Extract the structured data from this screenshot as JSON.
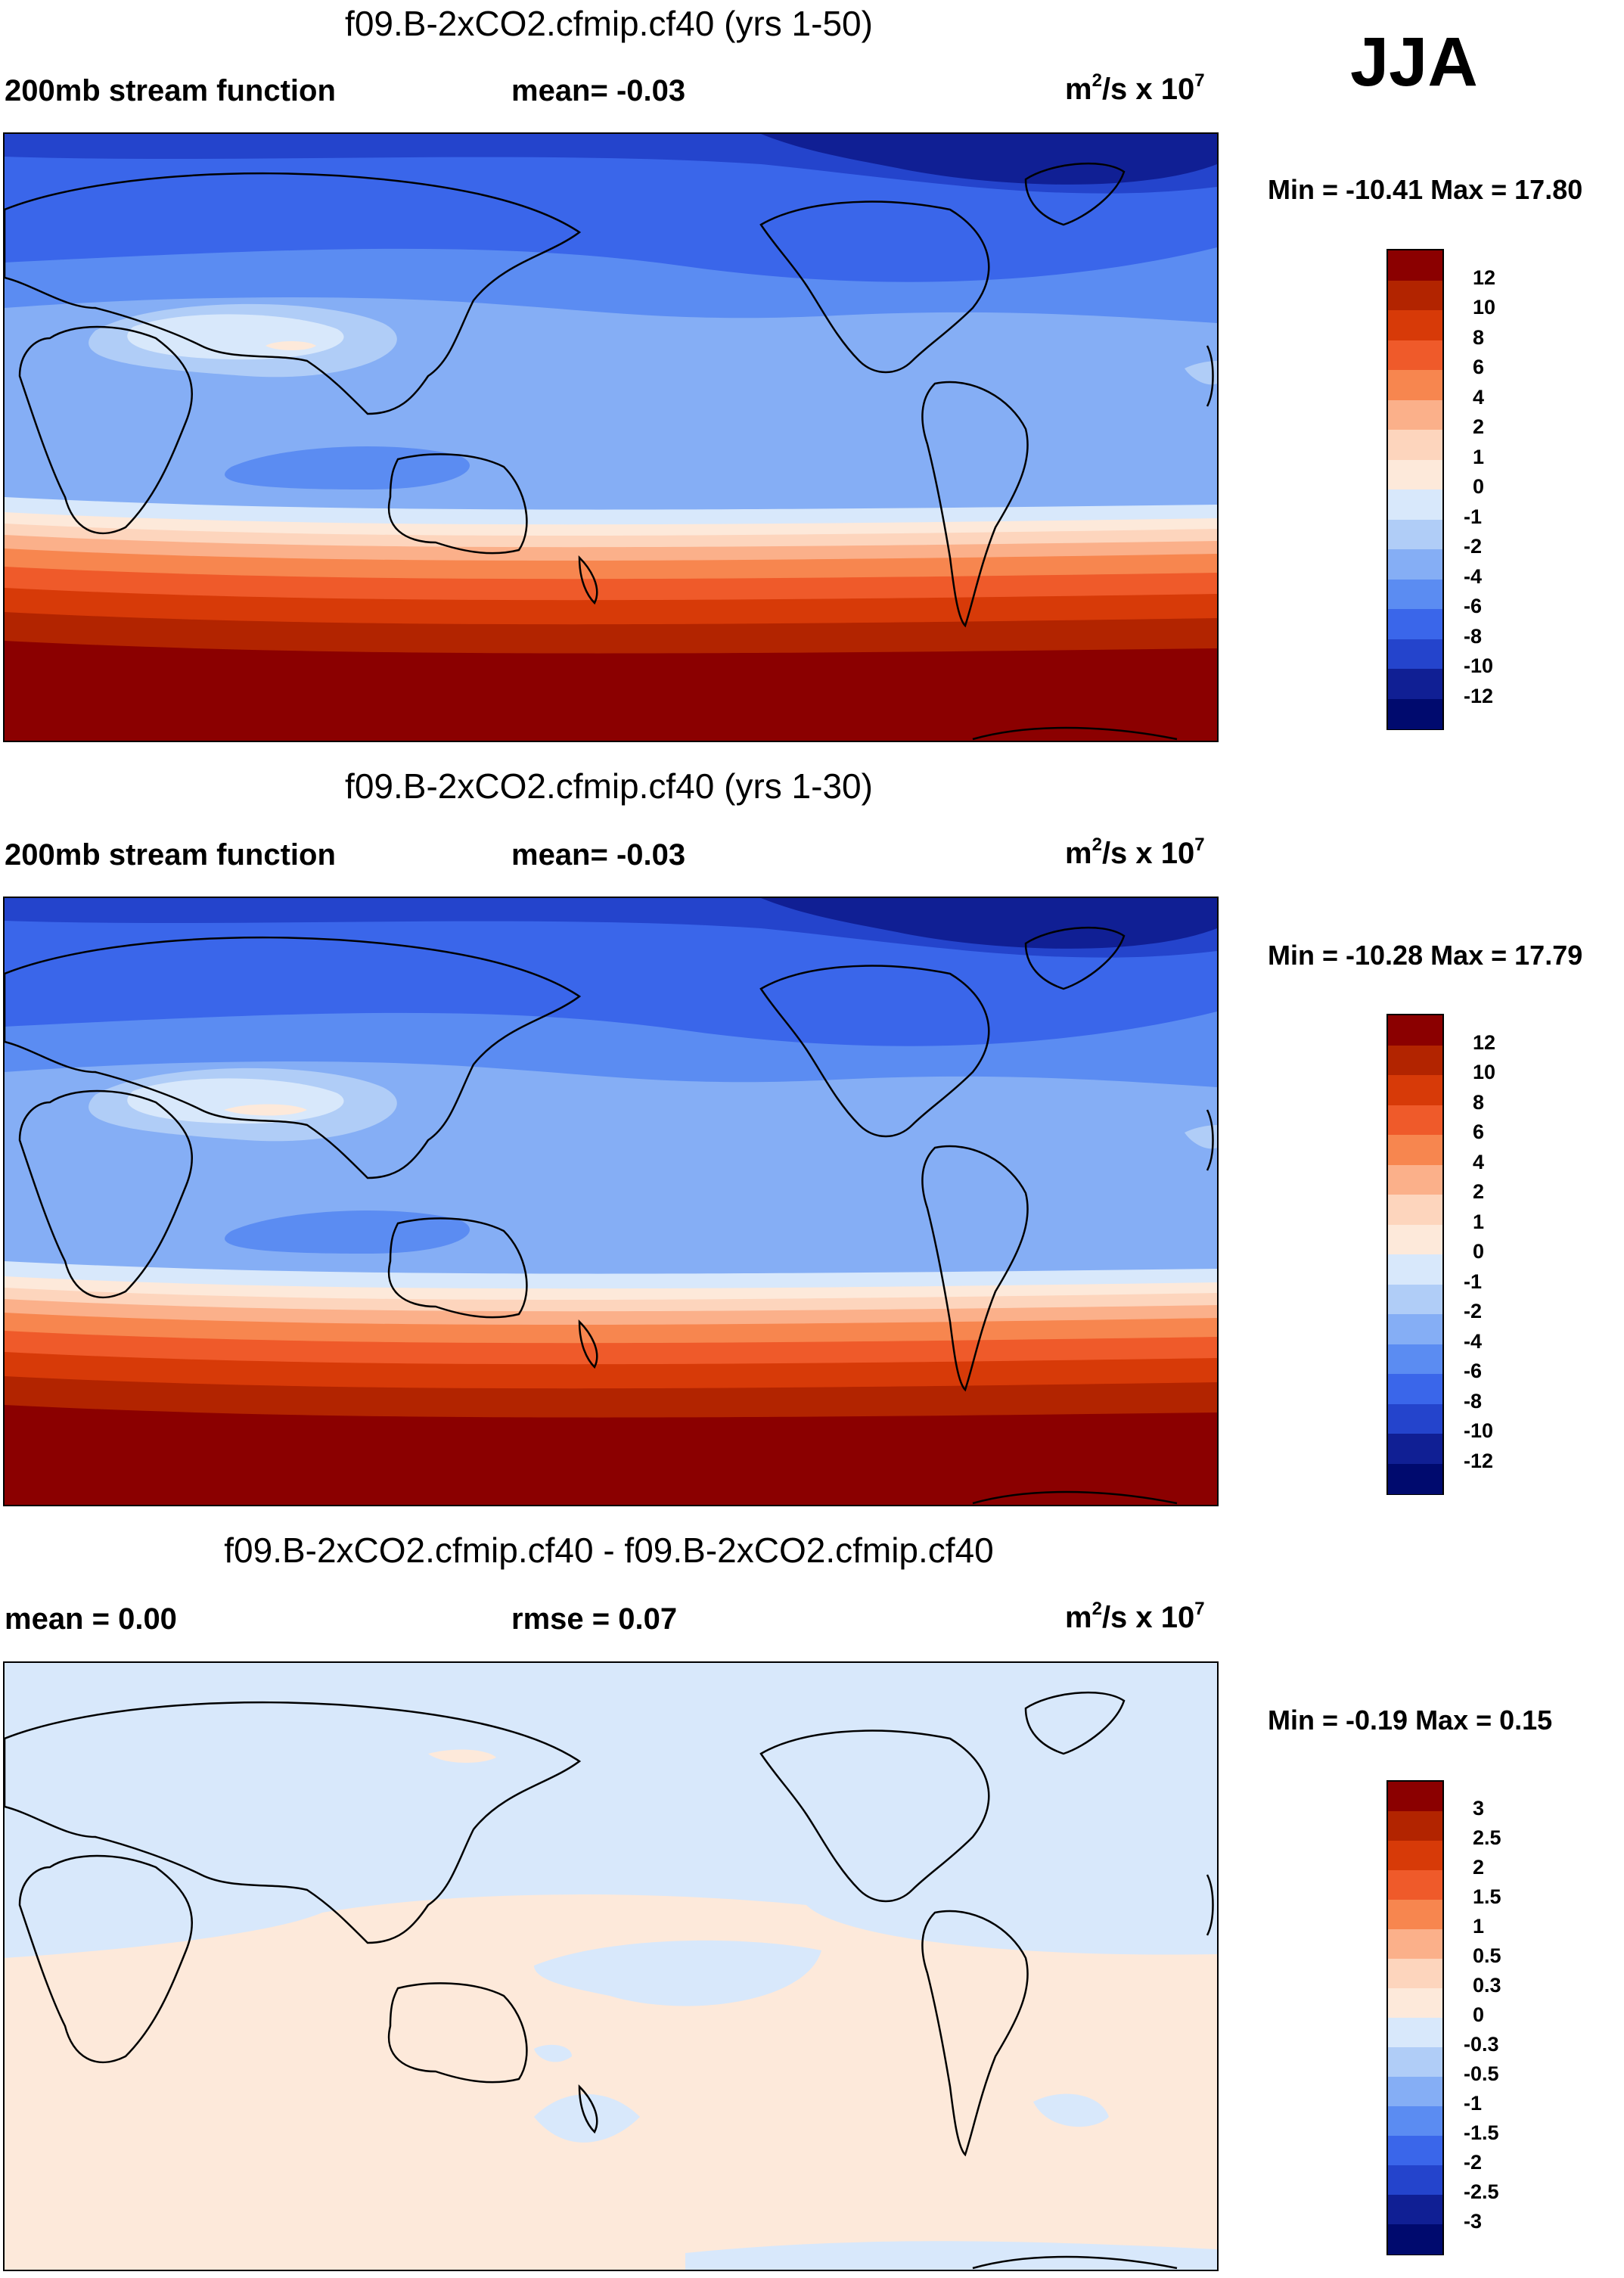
{
  "season": "JJA",
  "panels": [
    {
      "title": "f09.B-2xCO2.cfmip.cf40 (yrs 1-50)",
      "left_label": "200mb stream function",
      "mid_label": "mean=  -0.03",
      "units_main": "m",
      "units_sup1": "2",
      "units_mid": "/s x 10",
      "units_sup2": "7",
      "minmax": "Min = -10.41 Max =  17.80",
      "colorbar_labels": [
        "12",
        "10",
        "8",
        "6",
        "4",
        "2",
        "1",
        "0",
        "-1",
        "-2",
        "-4",
        "-6",
        "-8",
        "-10",
        "-12"
      ]
    },
    {
      "title": "f09.B-2xCO2.cfmip.cf40 (yrs 1-30)",
      "left_label": "200mb stream function",
      "mid_label": "mean=  -0.03",
      "units_main": "m",
      "units_sup1": "2",
      "units_mid": "/s x 10",
      "units_sup2": "7",
      "minmax": "Min = -10.28 Max =  17.79",
      "colorbar_labels": [
        "12",
        "10",
        "8",
        "6",
        "4",
        "2",
        "1",
        "0",
        "-1",
        "-2",
        "-4",
        "-6",
        "-8",
        "-10",
        "-12"
      ]
    },
    {
      "title": "f09.B-2xCO2.cfmip.cf40 - f09.B-2xCO2.cfmip.cf40",
      "left_label": "mean =   0.00",
      "mid_label": "rmse =   0.07",
      "units_main": "m",
      "units_sup1": "2",
      "units_mid": "/s x 10",
      "units_sup2": "7",
      "minmax": "Min =  -0.19 Max =   0.15",
      "colorbar_labels": [
        "3",
        "2.5",
        "2",
        "1.5",
        "1",
        "0.5",
        "0.3",
        "0",
        "-0.3",
        "-0.5",
        "-1",
        "-1.5",
        "-2",
        "-2.5",
        "-3"
      ]
    }
  ],
  "colors": {
    "scale": [
      "#8b0000",
      "#b22400",
      "#d73a08",
      "#ef5a2a",
      "#f7864f",
      "#fbb08a",
      "#fdd5bd",
      "#fde9da",
      "#d8e8fb",
      "#b0cdf7",
      "#85aef5",
      "#5b8cf2",
      "#3a66ea",
      "#2444cc",
      "#101f94",
      "#000a6e"
    ],
    "diff_scale": [
      "#8b0000",
      "#b22400",
      "#d73a08",
      "#ef5a2a",
      "#f7864f",
      "#fbb08a",
      "#fdd5bd",
      "#fde9da",
      "#d8e8fb",
      "#b0cdf7",
      "#85aef5",
      "#5b8cf2",
      "#3a66ea",
      "#2444cc",
      "#101f94",
      "#000a6e"
    ]
  }
}
